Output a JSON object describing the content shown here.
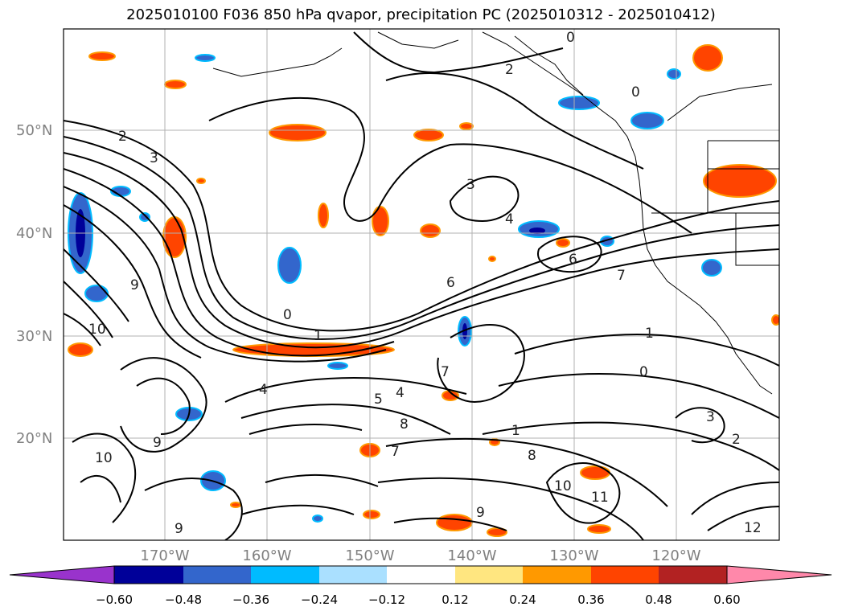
{
  "title": "2025010100 F036 850 hPa qvapor, precipitation PC (2025010312 - 2025010412)",
  "lat_labels": [
    "50°N",
    "40°N",
    "30°N",
    "20°N"
  ],
  "lon_labels": [
    "170°W",
    "160°W",
    "150°W",
    "140°W",
    "130°W",
    "120°W"
  ],
  "colorbar": {
    "ticks": [
      "−0.60",
      "−0.48",
      "−0.36",
      "−0.24",
      "−0.12",
      "0.12",
      "0.24",
      "0.36",
      "0.48",
      "0.60"
    ],
    "colors": [
      "#9933cc",
      "#000099",
      "#3366cc",
      "#00bbff",
      "#aae0ff",
      "#ffffff",
      "#ffe680",
      "#ff9900",
      "#ff4400",
      "#b22222",
      "#ff88aa"
    ]
  },
  "contour_labels": [
    "2",
    "3",
    "0",
    "2",
    "0",
    "1",
    "3",
    "4",
    "6",
    "7",
    "1",
    "0",
    "3",
    "2",
    "6",
    "4",
    "7",
    "8",
    "9",
    "10",
    "11",
    "12",
    "8",
    "7",
    "1",
    "9",
    "10",
    "9",
    "5",
    "4",
    "9",
    "10",
    "0"
  ]
}
